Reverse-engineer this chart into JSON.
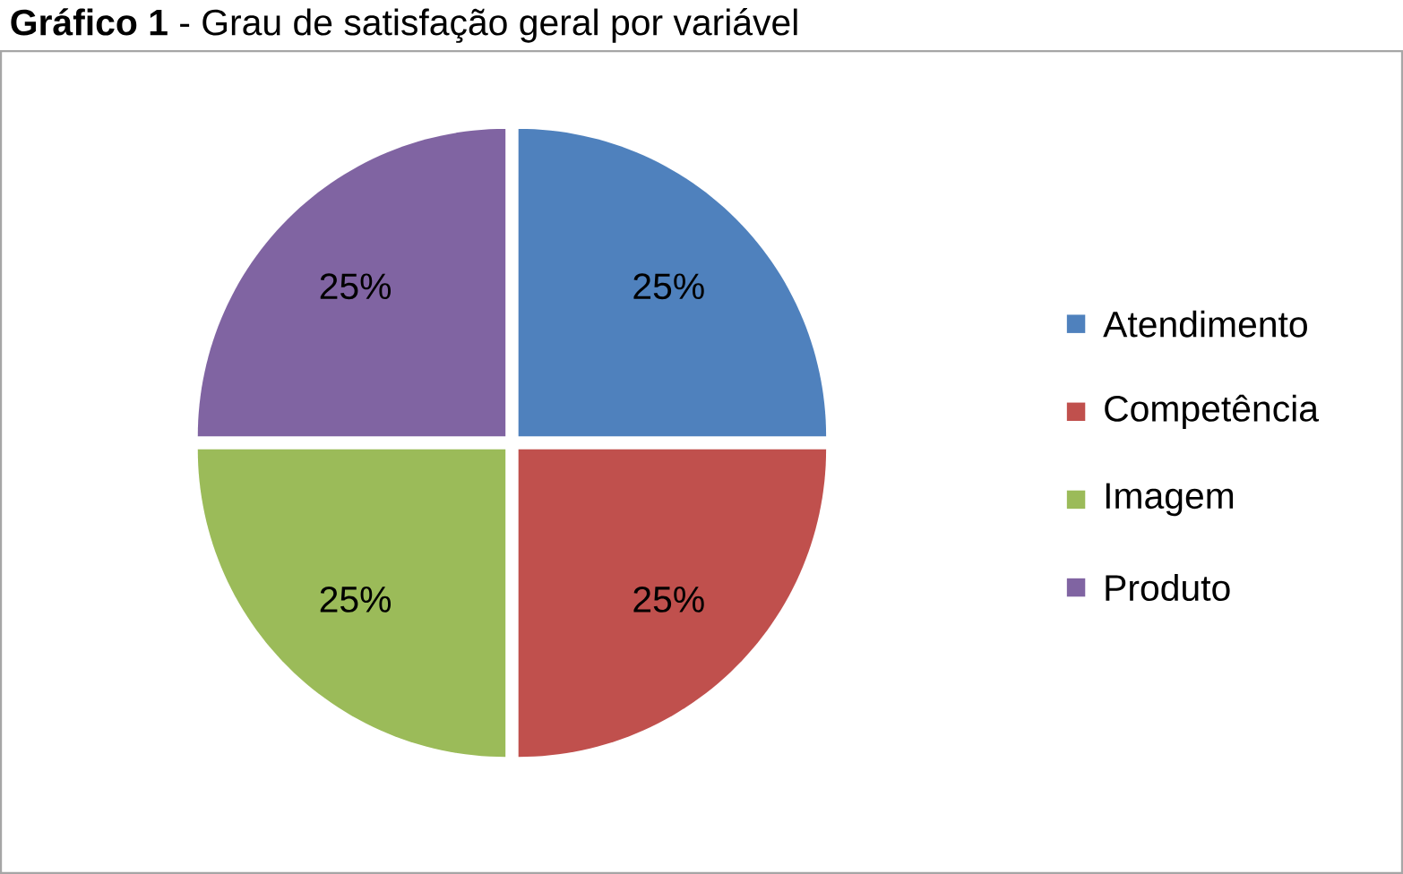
{
  "chart_data": {
    "type": "pie",
    "title": "**Gráfico 1** - Grau de satisfação geral por variável",
    "categories": [
      "Atendimento",
      "Competência",
      "Imagem",
      "Produto"
    ],
    "values": [
      25,
      25,
      25,
      25
    ],
    "colors": [
      "#4f81bd",
      "#c0504d",
      "#9bbb59",
      "#8064a2"
    ],
    "value_labels": [
      "25%",
      "25%",
      "25%",
      "25%"
    ],
    "legend": "right"
  }
}
